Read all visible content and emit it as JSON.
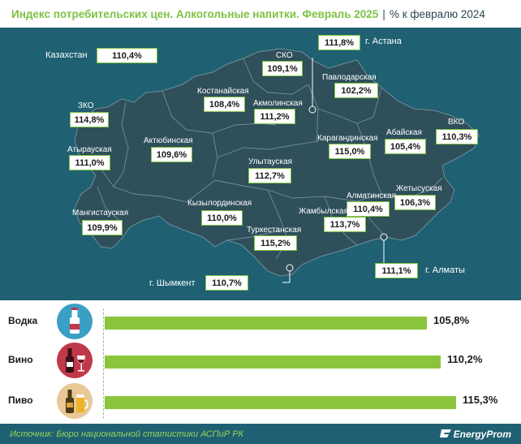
{
  "header": {
    "title": "Индекс потребительских цен. Алкогольные напитки. Февраль 2025",
    "separator": "|",
    "subtitle": "% к февралю 2024"
  },
  "colors": {
    "map_bg": "#1f6072",
    "land": "#2f4f5b",
    "accent": "#7cc242",
    "bar": "#8ac53d"
  },
  "map": {
    "country": {
      "name": "Казахстан",
      "value": "110,4%"
    },
    "regions": [
      {
        "id": "sko",
        "name": "СКО",
        "value": "109,1%"
      },
      {
        "id": "astana",
        "name": "г. Астана",
        "value": "111,8%"
      },
      {
        "id": "pavlodar",
        "name": "Павлодарская",
        "value": "102,2%"
      },
      {
        "id": "kostanay",
        "name": "Костанайская",
        "value": "108,4%"
      },
      {
        "id": "akmola",
        "name": "Акмолинская",
        "value": "111,2%"
      },
      {
        "id": "zko",
        "name": "ЗКО",
        "value": "114,8%"
      },
      {
        "id": "atyrau",
        "name": "Атырауская",
        "value": "111,0%"
      },
      {
        "id": "aktobe",
        "name": "Актюбинская",
        "value": "109,6%"
      },
      {
        "id": "karaganda",
        "name": "Карагандинская",
        "value": "115,0%"
      },
      {
        "id": "abai",
        "name": "Абайская",
        "value": "105,4%"
      },
      {
        "id": "vko",
        "name": "ВКО",
        "value": "110,3%"
      },
      {
        "id": "ulytau",
        "name": "Улытауская",
        "value": "112,7%"
      },
      {
        "id": "mangistau",
        "name": "Мангистауская",
        "value": "109,9%"
      },
      {
        "id": "kyzylorda",
        "name": "Кызылординская",
        "value": "110,0%"
      },
      {
        "id": "zhetysu",
        "name": "Жетысуская",
        "value": "106,3%"
      },
      {
        "id": "almaty_reg",
        "name": "Алматинская",
        "value": "110,4%"
      },
      {
        "id": "zhambyl",
        "name": "Жамбылская",
        "value": "113,7%"
      },
      {
        "id": "turkestan",
        "name": "Туркестанская",
        "value": "115,2%"
      },
      {
        "id": "almaty",
        "name": "г. Алматы",
        "value": "111,1%"
      },
      {
        "id": "shymkent",
        "name": "г. Шымкент",
        "value": "110,7%"
      }
    ]
  },
  "products": [
    {
      "name": "Водка",
      "value": 105.8,
      "label": "105,8%",
      "icon": "vodka-bottle-icon",
      "circle": "#3a9fc4"
    },
    {
      "name": "Вино",
      "value": 110.2,
      "label": "110,2%",
      "icon": "wine-bottle-glass-icon",
      "circle": "#c0394a"
    },
    {
      "name": "Пиво",
      "value": 115.3,
      "label": "115,3%",
      "icon": "beer-bottle-glass-icon",
      "circle": "#e8c896"
    }
  ],
  "footer": {
    "source": "Источник: Бюро национальной статистики АСПиР РК",
    "brand": "EnergyProm"
  }
}
